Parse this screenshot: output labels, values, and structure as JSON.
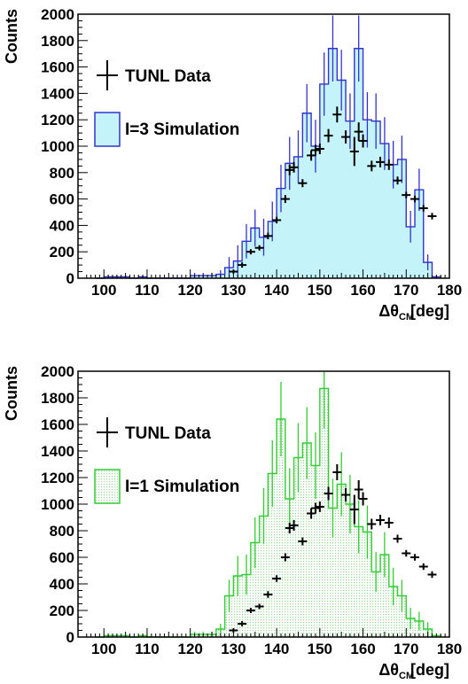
{
  "chart_data": [
    {
      "type": "bar",
      "ylabel": "Counts",
      "xlabel_main": "Δθ",
      "xlabel_sub": "CM",
      "xlabel_unit": "[deg]",
      "xlim": [
        94,
        180
      ],
      "ylim": [
        0,
        2000
      ],
      "x_ticks": [
        "100",
        "110",
        "120",
        "130",
        "140",
        "150",
        "160",
        "170",
        "180"
      ],
      "y_ticks": [
        "0",
        "200",
        "400",
        "600",
        "800",
        "1000",
        "1200",
        "1400",
        "1600",
        "1800",
        "2000"
      ],
      "legend": {
        "placement": "top-left",
        "data_label": "TUNL Data",
        "sim_label": "I=3 Simulation"
      },
      "colors": {
        "line": "#3333cc",
        "fill": "#c4f4fa",
        "data": "#000000"
      },
      "series": [
        {
          "name": "I=3 Simulation",
          "bin_edges": [
            98,
            100,
            102,
            104,
            106,
            108,
            110,
            112,
            114,
            116,
            118,
            120,
            122,
            124,
            126,
            128,
            130,
            132,
            134,
            136,
            138,
            140,
            142,
            144,
            146,
            148,
            150,
            152,
            154,
            156,
            158,
            160,
            162,
            164,
            166,
            168,
            170,
            172,
            174,
            176,
            178
          ],
          "values": [
            0,
            10,
            10,
            10,
            0,
            10,
            0,
            0,
            0,
            0,
            0,
            20,
            20,
            20,
            30,
            80,
            130,
            280,
            380,
            310,
            430,
            680,
            870,
            920,
            1250,
            1000,
            1470,
            1740,
            1500,
            1190,
            1740,
            1200,
            1190,
            1020,
            860,
            900,
            390,
            670,
            120,
            10
          ],
          "errors": [
            0,
            10,
            10,
            10,
            0,
            10,
            0,
            0,
            0,
            0,
            0,
            20,
            20,
            20,
            30,
            80,
            120,
            130,
            140,
            140,
            150,
            180,
            200,
            200,
            220,
            200,
            240,
            250,
            230,
            210,
            250,
            210,
            210,
            200,
            180,
            180,
            120,
            160,
            60,
            10
          ]
        },
        {
          "name": "TUNL Data",
          "x": [
            130,
            132,
            134,
            136,
            138,
            140,
            142,
            143,
            144,
            146,
            148,
            149,
            150,
            152,
            154,
            156,
            158,
            159,
            160,
            162,
            164,
            166,
            168,
            170,
            172,
            174,
            176
          ],
          "y": [
            50,
            100,
            200,
            230,
            320,
            440,
            600,
            820,
            840,
            720,
            930,
            970,
            980,
            1080,
            1240,
            1070,
            960,
            1110,
            1040,
            850,
            880,
            860,
            740,
            630,
            600,
            530,
            470
          ],
          "errors": [
            15,
            20,
            20,
            20,
            25,
            25,
            30,
            40,
            40,
            30,
            40,
            40,
            40,
            50,
            60,
            50,
            110,
            70,
            50,
            40,
            40,
            40,
            30,
            25,
            25,
            25,
            25
          ]
        }
      ]
    },
    {
      "type": "bar",
      "ylabel": "Counts",
      "xlabel_main": "Δθ",
      "xlabel_sub": "CM",
      "xlabel_unit": "[deg]",
      "xlim": [
        94,
        180
      ],
      "ylim": [
        0,
        2000
      ],
      "x_ticks": [
        "100",
        "110",
        "120",
        "130",
        "140",
        "150",
        "160",
        "170",
        "180"
      ],
      "y_ticks": [
        "0",
        "200",
        "400",
        "600",
        "800",
        "1000",
        "1200",
        "1400",
        "1600",
        "1800",
        "2000"
      ],
      "legend": {
        "placement": "top-left",
        "data_label": "TUNL Data",
        "sim_label": "I=1 Simulation"
      },
      "colors": {
        "line": "#33cc33",
        "fill": "#ddf2dd",
        "data": "#000000"
      },
      "series": [
        {
          "name": "I=1 Simulation",
          "bin_edges": [
            98,
            100,
            102,
            104,
            106,
            108,
            110,
            112,
            114,
            116,
            118,
            120,
            122,
            124,
            126,
            128,
            130,
            132,
            134,
            136,
            138,
            140,
            142,
            144,
            146,
            148,
            150,
            152,
            154,
            156,
            158,
            160,
            162,
            164,
            166,
            168,
            170,
            172,
            174,
            176,
            178
          ],
          "values": [
            0,
            10,
            10,
            10,
            0,
            10,
            0,
            0,
            0,
            0,
            0,
            20,
            20,
            20,
            60,
            310,
            460,
            470,
            710,
            910,
            1230,
            1640,
            1040,
            1350,
            1460,
            1290,
            1870,
            970,
            1150,
            1000,
            830,
            790,
            490,
            620,
            380,
            310,
            140,
            120,
            60,
            10
          ],
          "errors": [
            0,
            10,
            10,
            10,
            0,
            10,
            0,
            0,
            0,
            0,
            0,
            20,
            20,
            20,
            40,
            120,
            150,
            150,
            190,
            210,
            250,
            280,
            230,
            260,
            270,
            250,
            300,
            220,
            240,
            220,
            200,
            200,
            150,
            170,
            140,
            120,
            80,
            70,
            50,
            10
          ]
        },
        {
          "name": "TUNL Data",
          "x": [
            130,
            132,
            134,
            136,
            138,
            140,
            142,
            143,
            144,
            146,
            148,
            149,
            150,
            152,
            154,
            156,
            158,
            159,
            160,
            162,
            164,
            166,
            168,
            170,
            172,
            174,
            176
          ],
          "y": [
            50,
            100,
            200,
            230,
            320,
            440,
            600,
            820,
            840,
            720,
            930,
            970,
            980,
            1080,
            1240,
            1070,
            960,
            1110,
            1040,
            850,
            880,
            860,
            740,
            630,
            600,
            530,
            470
          ],
          "errors": [
            15,
            20,
            20,
            20,
            25,
            25,
            30,
            40,
            40,
            30,
            40,
            40,
            40,
            50,
            60,
            50,
            110,
            70,
            50,
            40,
            40,
            40,
            30,
            25,
            25,
            25,
            25
          ]
        }
      ]
    }
  ]
}
